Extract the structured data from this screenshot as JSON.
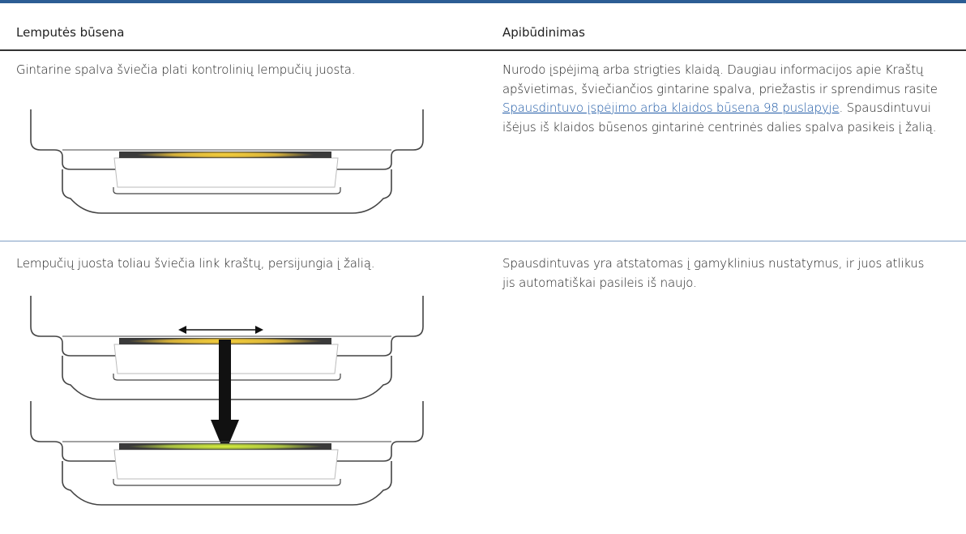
{
  "table": {
    "header": [
      "Lemputės būsena",
      "Apibūdinimas"
    ],
    "rows": [
      {
        "state": "Gintarine spalva šviečia plati kontrolinių lempučių juosta.",
        "description": {
          "before": "Nurodo įspėjimą arba strigties klaidą. Daugiau informacijos apie Kraštų apšvietimas, šviečiančios gintarine spalva, priežastis ir sprendimus rasite ",
          "link": "Spausdintuvo įspėjimo arba klaidos būsena 98 puslapyje",
          "after": ". Spausdintuvui išėjus iš klaidos būsenos gintarinė centrinės dalies spalva pasikeis į žalią."
        }
      },
      {
        "state": "Lempučių juosta toliau šviečia link kraštų, persijungia į žalią.",
        "description": {
          "before": "Spausdintuvas yra atstatomas į gamyklinius nustatymus, ir juos atlikus jis automatiškai pasileis iš naujo."
        }
      }
    ]
  }
}
